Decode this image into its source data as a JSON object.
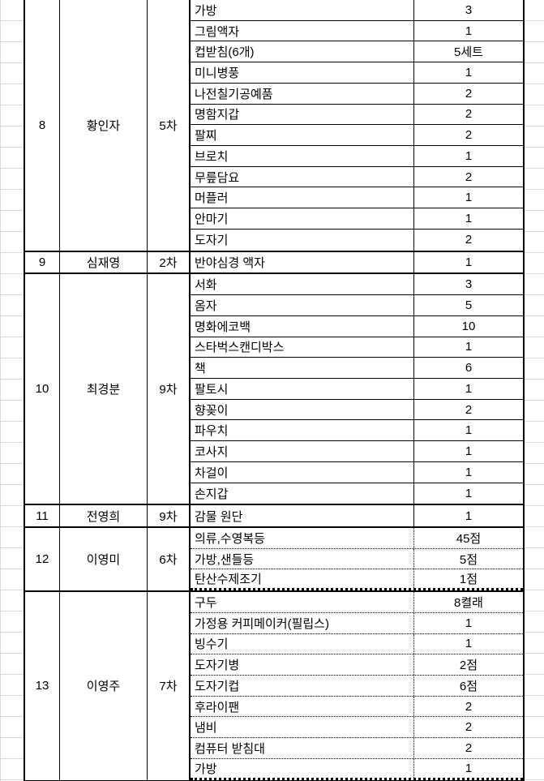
{
  "colors": {
    "table_border": "#000000",
    "gridline": "#d9d9d9",
    "background": "#ffffff",
    "text": "#000000"
  },
  "table": {
    "groups": [
      {
        "no": "8",
        "name": "황인자",
        "round": "5차",
        "border_style": "solid",
        "items": [
          {
            "label": "가방",
            "qty": "3"
          },
          {
            "label": "그림액자",
            "qty": "1"
          },
          {
            "label": "컵받침(6개)",
            "qty": "5세트"
          },
          {
            "label": "미니병풍",
            "qty": "1"
          },
          {
            "label": "나전칠기공예품",
            "qty": "2"
          },
          {
            "label": "명함지갑",
            "qty": "2"
          },
          {
            "label": "팔찌",
            "qty": "2"
          },
          {
            "label": "브로치",
            "qty": "1"
          },
          {
            "label": "무릎담요",
            "qty": "2"
          },
          {
            "label": "머플러",
            "qty": "1"
          },
          {
            "label": "안마기",
            "qty": "1"
          },
          {
            "label": "도자기",
            "qty": "2"
          }
        ]
      },
      {
        "no": "9",
        "name": "심재영",
        "round": "2차",
        "border_style": "solid",
        "items": [
          {
            "label": "반야심경 액자",
            "qty": "1"
          }
        ]
      },
      {
        "no": "10",
        "name": "최경분",
        "round": "9차",
        "border_style": "solid",
        "items": [
          {
            "label": "서화",
            "qty": "3"
          },
          {
            "label": "옴자",
            "qty": "5"
          },
          {
            "label": "명화에코백",
            "qty": "10"
          },
          {
            "label": "스타벅스캔디박스",
            "qty": "1"
          },
          {
            "label": "책",
            "qty": "6"
          },
          {
            "label": "팔토시",
            "qty": "1"
          },
          {
            "label": "향꽂이",
            "qty": "2"
          },
          {
            "label": "파우치",
            "qty": "1"
          },
          {
            "label": "코사지",
            "qty": "1"
          },
          {
            "label": "차걸이",
            "qty": "1"
          },
          {
            "label": "손지갑",
            "qty": "1"
          }
        ]
      },
      {
        "no": "11",
        "name": "전영희",
        "round": "9차",
        "border_style": "solid",
        "items": [
          {
            "label": "감물 원단",
            "qty": "1"
          }
        ]
      },
      {
        "no": "12",
        "name": "이영미",
        "round": "6차",
        "border_style": "dotted",
        "items": [
          {
            "label": "의류,수영복등",
            "qty": "45점"
          },
          {
            "label": "가방,샌들등",
            "qty": "5점"
          },
          {
            "label": "탄산수제조기",
            "qty": "1점"
          }
        ]
      },
      {
        "no": "13",
        "name": "이영주",
        "round": "7차",
        "border_style": "dotted",
        "items": [
          {
            "label": "구두",
            "qty": "8켤래"
          },
          {
            "label": "가정용 커피메이커(필립스)",
            "qty": "1"
          },
          {
            "label": "빙수기",
            "qty": "1"
          },
          {
            "label": "도자기병",
            "qty": "2점"
          },
          {
            "label": "도자기컵",
            "qty": "6점"
          },
          {
            "label": "후라이팬",
            "qty": "2"
          },
          {
            "label": "냄비",
            "qty": "2"
          },
          {
            "label": "컴퓨터 받침대",
            "qty": "2"
          },
          {
            "label": "가방",
            "qty": "1"
          }
        ]
      }
    ]
  }
}
